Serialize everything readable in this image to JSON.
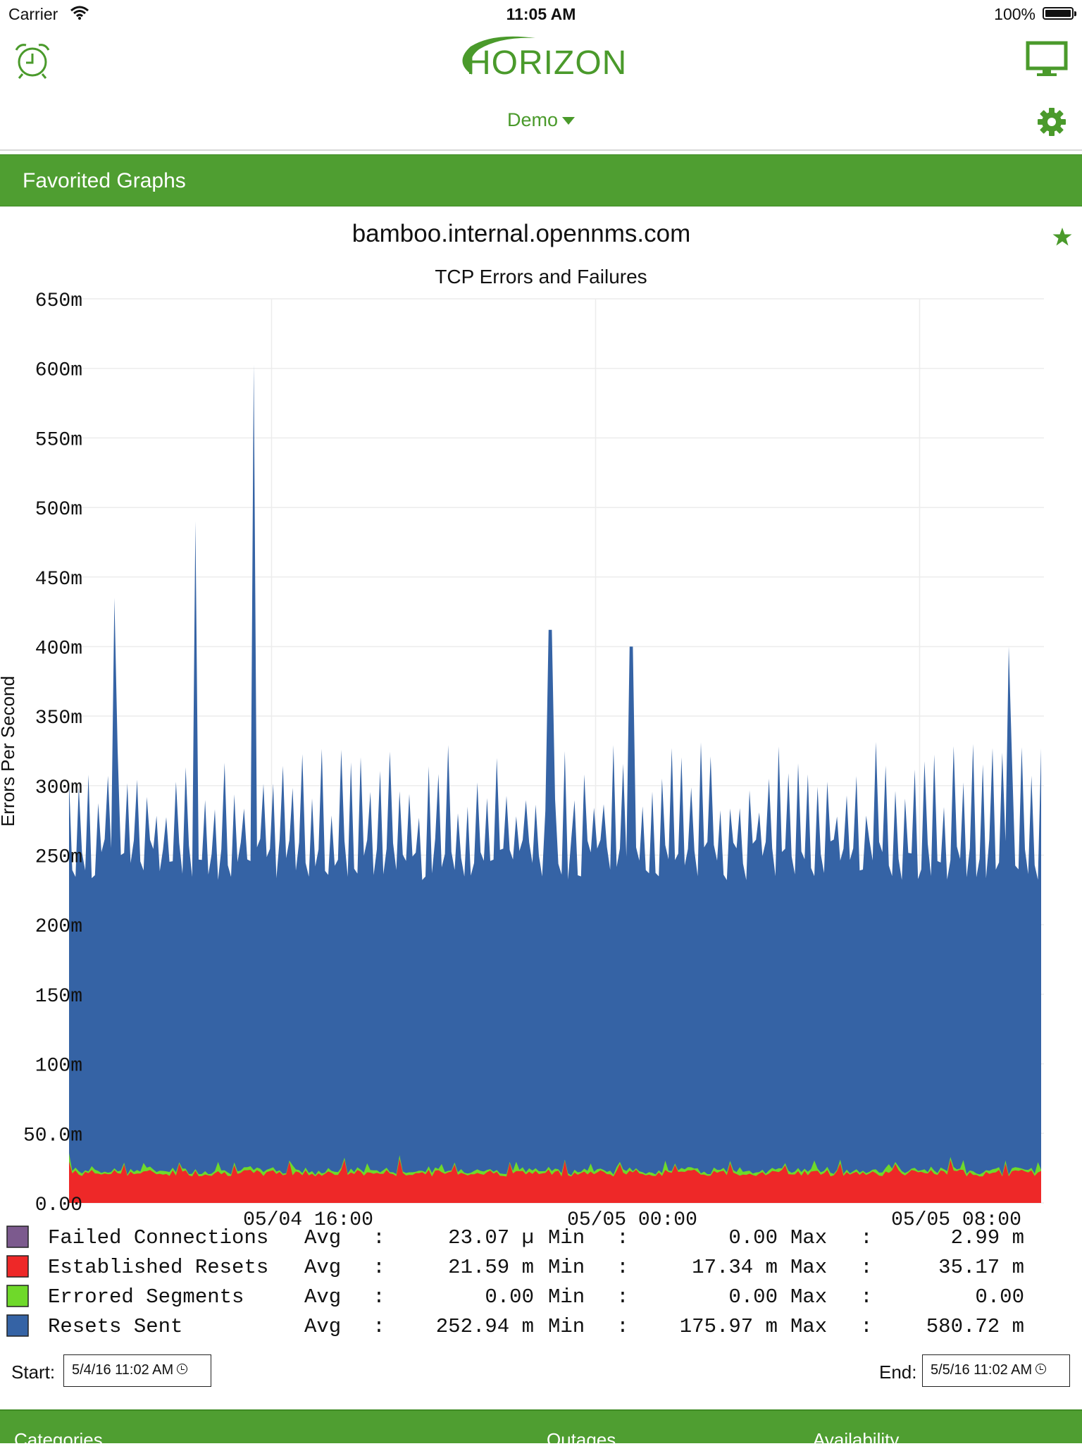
{
  "status_bar": {
    "carrier": "Carrier",
    "time": "11:05 AM",
    "battery": "100%"
  },
  "header": {
    "logo_text": "HORIZON",
    "server": "Demo",
    "brand_color": "#4a9a2b"
  },
  "section": {
    "title": "Favorited Graphs"
  },
  "graph": {
    "node": "bamboo.internal.opennms.com",
    "favorited": true
  },
  "chart_data": {
    "type": "area",
    "stacked": true,
    "title": "TCP Errors and Failures",
    "xlabel": "",
    "ylabel": "Errors Per Second",
    "y_ticks": [
      "0.00",
      "50.0m",
      "100m",
      "150m",
      "200m",
      "250m",
      "300m",
      "350m",
      "400m",
      "450m",
      "500m",
      "550m",
      "600m",
      "650m"
    ],
    "ylim": [
      0,
      0.65
    ],
    "x_ticks": [
      {
        "label": "05/04 16:00",
        "hours": 5
      },
      {
        "label": "05/05 00:00",
        "hours": 13
      },
      {
        "label": "05/05 08:00",
        "hours": 21
      }
    ],
    "xlim": [
      "05/04 11:00",
      "05/05 11:00"
    ],
    "grid": true,
    "baseline_values": {
      "failed": 0.0,
      "established": 0.0216,
      "errored": 0.0,
      "resets": 0.252
    },
    "peaks": [
      {
        "hours": 1.13,
        "value": 0.435
      },
      {
        "hours": 3.13,
        "value": 0.49
      },
      {
        "hours": 4.55,
        "value": 0.603
      },
      {
        "hours": 11.88,
        "value": 0.412
      },
      {
        "hours": 13.88,
        "value": 0.4
      },
      {
        "hours": 23.17,
        "value": 0.4
      }
    ],
    "series": [
      {
        "name": "Failed Connections",
        "color": "#7c5a8e",
        "avg": "23.07 µ",
        "min": "0.00",
        "max": "2.99 m"
      },
      {
        "name": "Established Resets",
        "color": "#ee2828",
        "avg": "21.59 m",
        "min": "17.34 m",
        "max": "35.17 m"
      },
      {
        "name": "Errored Segments",
        "color": "#6fd92a",
        "avg": "0.00",
        "min": "0.00",
        "max": "0.00"
      },
      {
        "name": "Resets Sent",
        "color": "#3563a5",
        "avg": "252.94 m",
        "min": "175.97 m",
        "max": "580.72 m"
      }
    ],
    "legend_labels": {
      "avg": "Avg",
      "min": "Min",
      "max": "Max",
      "sep": ":"
    }
  },
  "range": {
    "start_label": "Start:",
    "start_value": "5/4/16 11:02 AM",
    "end_label": "End:",
    "end_value": "5/5/16 11:02 AM"
  },
  "tabs": [
    "Categories",
    "Outages",
    "Availability"
  ]
}
